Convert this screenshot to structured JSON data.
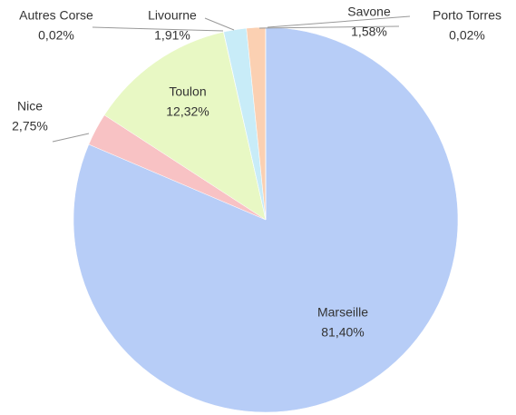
{
  "chart_data": {
    "type": "pie",
    "categories": [
      "Marseille",
      "Nice",
      "Toulon",
      "Autres Corse",
      "Livourne",
      "Savone",
      "Porto Torres"
    ],
    "values": [
      81.4,
      2.75,
      12.32,
      0.02,
      1.91,
      1.58,
      0.02
    ],
    "value_labels": [
      "81,40%",
      "2,75%",
      "12,32%",
      "0,02%",
      "1,91%",
      "1,58%",
      "0,02%"
    ],
    "colors": [
      "#b7cdf7",
      "#f8c2c4",
      "#e8f8c4",
      "#d9d2ee",
      "#c8ecf8",
      "#fbd0b2",
      "#f2c6a8"
    ]
  }
}
